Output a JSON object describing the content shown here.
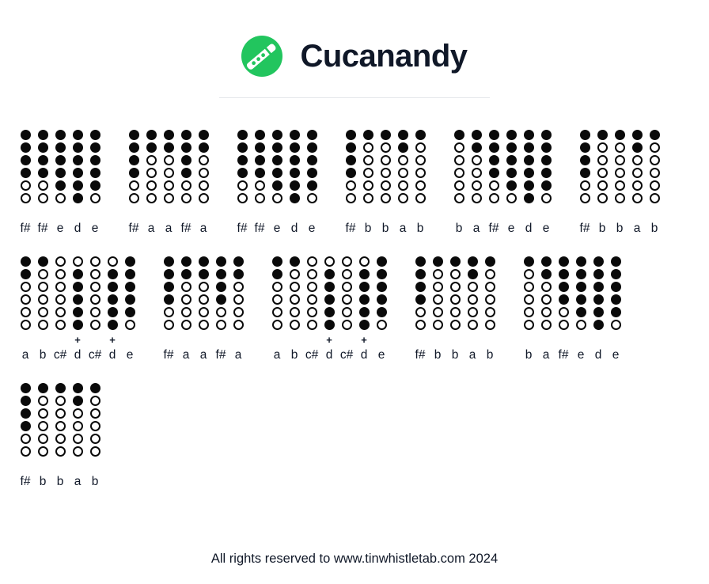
{
  "page": {
    "title": "Cucanandy",
    "footer": "All rights reserved to www.tinwhistletab.com 2024"
  },
  "logo": {
    "icon": "tin-whistle-icon",
    "background_color": "#22c55e",
    "whistle_color": "#ffffff"
  },
  "colors": {
    "title_text": "#101828",
    "note_text": "#101828",
    "hole_fill": "#0a0a0a",
    "divider": "#e5e7eb"
  },
  "octave_marker": "+",
  "fingering_map": {
    "d": [
      1,
      1,
      1,
      1,
      1,
      1
    ],
    "e": [
      1,
      1,
      1,
      1,
      1,
      0
    ],
    "f#": [
      1,
      1,
      1,
      1,
      0,
      0
    ],
    "a": [
      1,
      1,
      0,
      0,
      0,
      0
    ],
    "b": [
      1,
      0,
      0,
      0,
      0,
      0
    ],
    "c#": [
      0,
      0,
      0,
      0,
      0,
      0
    ],
    "d+": [
      0,
      1,
      1,
      1,
      1,
      1
    ]
  },
  "rows": [
    {
      "groups": [
        {
          "notes": [
            "f#",
            "f#",
            "e",
            "d",
            "e"
          ]
        },
        {
          "notes": [
            "f#",
            "a",
            "a",
            "f#",
            "a"
          ]
        },
        {
          "notes": [
            "f#",
            "f#",
            "e",
            "d",
            "e"
          ]
        },
        {
          "notes": [
            "f#",
            "b",
            "b",
            "a",
            "b"
          ]
        },
        {
          "notes": [
            "b",
            "a",
            "f#",
            "e",
            "d",
            "e"
          ]
        },
        {
          "notes": [
            "f#",
            "b",
            "b",
            "a",
            "b"
          ]
        }
      ]
    },
    {
      "groups": [
        {
          "notes": [
            "a",
            "b",
            "c#",
            "d+",
            "c#",
            "d+",
            "e"
          ]
        },
        {
          "notes": [
            "f#",
            "a",
            "a",
            "f#",
            "a"
          ]
        },
        {
          "notes": [
            "a",
            "b",
            "c#",
            "d+",
            "c#",
            "d+",
            "e"
          ]
        },
        {
          "notes": [
            "f#",
            "b",
            "b",
            "a",
            "b"
          ]
        },
        {
          "notes": [
            "b",
            "a",
            "f#",
            "e",
            "d",
            "e"
          ]
        }
      ]
    },
    {
      "groups": [
        {
          "notes": [
            "f#",
            "b",
            "b",
            "a",
            "b"
          ]
        }
      ]
    }
  ]
}
